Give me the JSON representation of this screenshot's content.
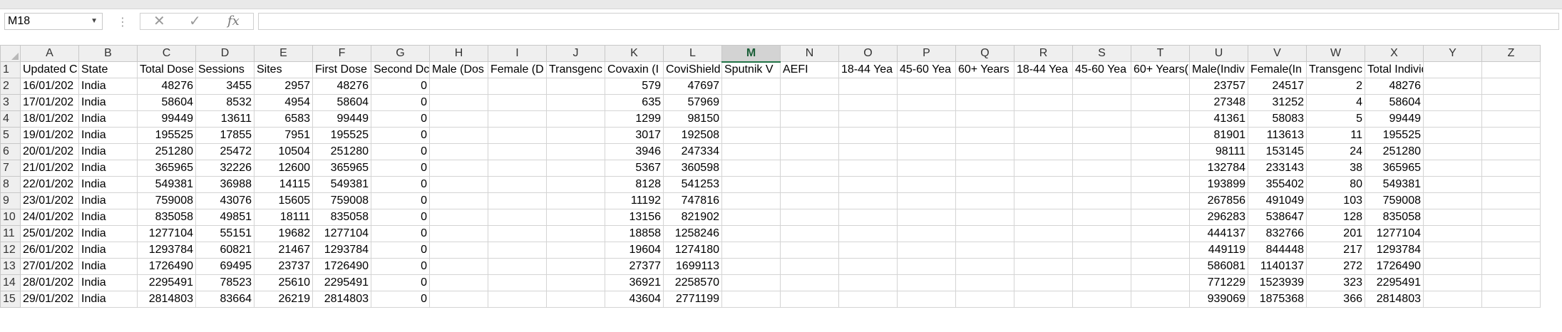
{
  "name_box": "M18",
  "formula_bar": {
    "value": ""
  },
  "columns": [
    "A",
    "B",
    "C",
    "D",
    "E",
    "F",
    "G",
    "H",
    "I",
    "J",
    "K",
    "L",
    "M",
    "N",
    "O",
    "P",
    "Q",
    "R",
    "S",
    "T",
    "U",
    "V",
    "W",
    "X",
    "Y",
    "Z"
  ],
  "active_column": "M",
  "header_row": [
    "Updated C",
    "State",
    "Total Dose",
    "Sessions",
    "Sites",
    "First Dose",
    "Second Dc",
    "Male (Dos",
    "Female (D",
    "Transgenc",
    "Covaxin (I",
    "CoviShield",
    "Sputnik V",
    "AEFI",
    "18-44 Yea",
    "45-60 Yea",
    "60+ Years",
    "18-44 Yea",
    "45-60 Yea",
    "60+ Years(",
    "Male(Indiv",
    "Female(In",
    "Transgenc",
    "Total Individuals Vaccinated",
    "",
    ""
  ],
  "rows": [
    [
      "16/01/202",
      "India",
      "48276",
      "3455",
      "2957",
      "48276",
      "0",
      "",
      "",
      "",
      "579",
      "47697",
      "",
      "",
      "",
      "",
      "",
      "",
      "",
      "",
      "23757",
      "24517",
      "2",
      "48276",
      "",
      ""
    ],
    [
      "17/01/202",
      "India",
      "58604",
      "8532",
      "4954",
      "58604",
      "0",
      "",
      "",
      "",
      "635",
      "57969",
      "",
      "",
      "",
      "",
      "",
      "",
      "",
      "",
      "27348",
      "31252",
      "4",
      "58604",
      "",
      ""
    ],
    [
      "18/01/202",
      "India",
      "99449",
      "13611",
      "6583",
      "99449",
      "0",
      "",
      "",
      "",
      "1299",
      "98150",
      "",
      "",
      "",
      "",
      "",
      "",
      "",
      "",
      "41361",
      "58083",
      "5",
      "99449",
      "",
      ""
    ],
    [
      "19/01/202",
      "India",
      "195525",
      "17855",
      "7951",
      "195525",
      "0",
      "",
      "",
      "",
      "3017",
      "192508",
      "",
      "",
      "",
      "",
      "",
      "",
      "",
      "",
      "81901",
      "113613",
      "11",
      "195525",
      "",
      ""
    ],
    [
      "20/01/202",
      "India",
      "251280",
      "25472",
      "10504",
      "251280",
      "0",
      "",
      "",
      "",
      "3946",
      "247334",
      "",
      "",
      "",
      "",
      "",
      "",
      "",
      "",
      "98111",
      "153145",
      "24",
      "251280",
      "",
      ""
    ],
    [
      "21/01/202",
      "India",
      "365965",
      "32226",
      "12600",
      "365965",
      "0",
      "",
      "",
      "",
      "5367",
      "360598",
      "",
      "",
      "",
      "",
      "",
      "",
      "",
      "",
      "132784",
      "233143",
      "38",
      "365965",
      "",
      ""
    ],
    [
      "22/01/202",
      "India",
      "549381",
      "36988",
      "14115",
      "549381",
      "0",
      "",
      "",
      "",
      "8128",
      "541253",
      "",
      "",
      "",
      "",
      "",
      "",
      "",
      "",
      "193899",
      "355402",
      "80",
      "549381",
      "",
      ""
    ],
    [
      "23/01/202",
      "India",
      "759008",
      "43076",
      "15605",
      "759008",
      "0",
      "",
      "",
      "",
      "11192",
      "747816",
      "",
      "",
      "",
      "",
      "",
      "",
      "",
      "",
      "267856",
      "491049",
      "103",
      "759008",
      "",
      ""
    ],
    [
      "24/01/202",
      "India",
      "835058",
      "49851",
      "18111",
      "835058",
      "0",
      "",
      "",
      "",
      "13156",
      "821902",
      "",
      "",
      "",
      "",
      "",
      "",
      "",
      "",
      "296283",
      "538647",
      "128",
      "835058",
      "",
      ""
    ],
    [
      "25/01/202",
      "India",
      "1277104",
      "55151",
      "19682",
      "1277104",
      "0",
      "",
      "",
      "",
      "18858",
      "1258246",
      "",
      "",
      "",
      "",
      "",
      "",
      "",
      "",
      "444137",
      "832766",
      "201",
      "1277104",
      "",
      ""
    ],
    [
      "26/01/202",
      "India",
      "1293784",
      "60821",
      "21467",
      "1293784",
      "0",
      "",
      "",
      "",
      "19604",
      "1274180",
      "",
      "",
      "",
      "",
      "",
      "",
      "",
      "",
      "449119",
      "844448",
      "217",
      "1293784",
      "",
      ""
    ],
    [
      "27/01/202",
      "India",
      "1726490",
      "69495",
      "23737",
      "1726490",
      "0",
      "",
      "",
      "",
      "27377",
      "1699113",
      "",
      "",
      "",
      "",
      "",
      "",
      "",
      "",
      "586081",
      "1140137",
      "272",
      "1726490",
      "",
      ""
    ],
    [
      "28/01/202",
      "India",
      "2295491",
      "78523",
      "25610",
      "2295491",
      "0",
      "",
      "",
      "",
      "36921",
      "2258570",
      "",
      "",
      "",
      "",
      "",
      "",
      "",
      "",
      "771229",
      "1523939",
      "323",
      "2295491",
      "",
      ""
    ],
    [
      "29/01/202",
      "India",
      "2814803",
      "83664",
      "26219",
      "2814803",
      "0",
      "",
      "",
      "",
      "43604",
      "2771199",
      "",
      "",
      "",
      "",
      "",
      "",
      "",
      "",
      "939069",
      "1875368",
      "366",
      "2814803",
      "",
      ""
    ]
  ]
}
